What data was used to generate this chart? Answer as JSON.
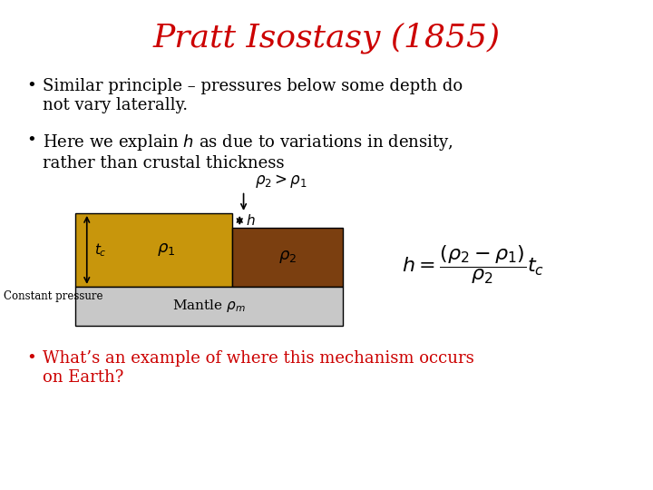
{
  "title": "Pratt Isostasy (1855)",
  "title_color": "#CC0000",
  "title_fontsize": 26,
  "bg_color": "#FFFFFF",
  "bullet1": "Similar principle – pressures below some depth do\nnot vary laterally.",
  "bullet2": "Here we explain $h$ as due to variations in density,\nrather than crustal thickness",
  "bullet3": "What’s an example of where this mechanism occurs\non Earth?",
  "bullet3_color": "#CC0000",
  "gold_color": "#C8960C",
  "brown_color": "#7B3F10",
  "gray_color": "#C8C8C8",
  "text_fontsize": 13,
  "bullet_fontsize": 14
}
